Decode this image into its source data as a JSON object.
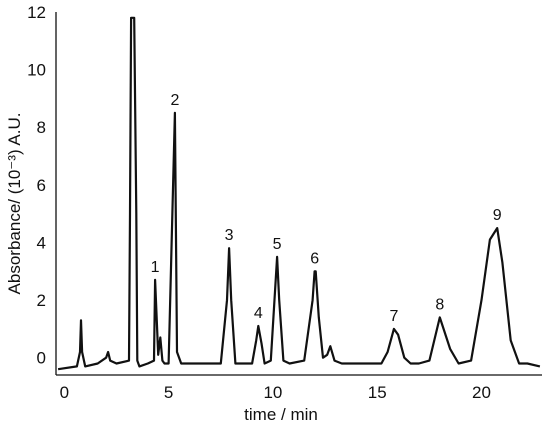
{
  "chart_data": {
    "type": "line",
    "xlabel": "time / min",
    "ylabel": "Absorbance/ (10⁻³) A.U.",
    "xlim": [
      -0.4,
      22.9
    ],
    "ylim": [
      -0.6,
      12
    ],
    "x_ticks": [
      "0",
      "5",
      "10",
      "15",
      "20"
    ],
    "x_tick_values": [
      0,
      5,
      10,
      15,
      20
    ],
    "y_ticks": [
      "0",
      "2",
      "4",
      "6",
      "8",
      "10",
      "12"
    ],
    "y_tick_values": [
      0,
      2,
      4,
      6,
      8,
      10,
      12
    ],
    "grid": false,
    "line_color": "#111111",
    "series": [
      {
        "x": [
          -0.3,
          0.6,
          0.75,
          0.8,
          0.85,
          1.0,
          1.6,
          2.0,
          2.1,
          2.2,
          2.5,
          3.1,
          3.15,
          3.2,
          3.35,
          3.45,
          3.5,
          3.6,
          4.0,
          4.3,
          4.35,
          4.5,
          4.6,
          4.7,
          4.8,
          5.0,
          5.3,
          5.4,
          5.6,
          6.0,
          7.5,
          7.8,
          7.9,
          8.0,
          8.2,
          8.5,
          9.0,
          9.2,
          9.3,
          9.45,
          9.6,
          9.9,
          10.2,
          10.3,
          10.5,
          10.8,
          11.5,
          11.9,
          12.0,
          12.05,
          12.2,
          12.4,
          12.6,
          12.75,
          12.95,
          13.3,
          14.5,
          15.2,
          15.5,
          15.8,
          16.0,
          16.3,
          16.6,
          17.0,
          17.5,
          18.0,
          18.5,
          18.9,
          19.5,
          20.0,
          20.4,
          20.75,
          21.0,
          21.4,
          21.8,
          22.2,
          22.8
        ],
        "y": [
          -0.4,
          -0.3,
          0.2,
          1.3,
          0.2,
          -0.3,
          -0.2,
          0.0,
          0.2,
          -0.1,
          -0.2,
          -0.1,
          5.0,
          11.8,
          11.8,
          5.0,
          -0.1,
          -0.3,
          -0.2,
          -0.1,
          2.7,
          0.1,
          0.7,
          -0.1,
          -0.2,
          -0.2,
          8.5,
          0.2,
          -0.2,
          -0.2,
          -0.2,
          2.0,
          3.8,
          2.0,
          -0.2,
          -0.2,
          -0.2,
          0.6,
          1.1,
          0.5,
          -0.2,
          -0.1,
          3.5,
          2.0,
          -0.1,
          -0.2,
          -0.1,
          2.0,
          3.0,
          3.0,
          1.4,
          0.0,
          0.1,
          0.4,
          -0.1,
          -0.2,
          -0.2,
          -0.2,
          0.2,
          1.0,
          0.8,
          0.0,
          -0.2,
          -0.2,
          -0.1,
          1.4,
          0.3,
          -0.2,
          -0.1,
          2.0,
          4.1,
          4.5,
          3.3,
          0.6,
          -0.2,
          -0.2,
          -0.3
        ]
      }
    ],
    "peak_labels": [
      {
        "text": "1",
        "x": 4.35,
        "y": 2.7
      },
      {
        "text": "2",
        "x": 5.3,
        "y": 8.5
      },
      {
        "text": "3",
        "x": 7.9,
        "y": 3.8
      },
      {
        "text": "4",
        "x": 9.3,
        "y": 1.1
      },
      {
        "text": "5",
        "x": 10.2,
        "y": 3.5
      },
      {
        "text": "6",
        "x": 12.0,
        "y": 3.0
      },
      {
        "text": "7",
        "x": 15.8,
        "y": 1.0
      },
      {
        "text": "8",
        "x": 18.0,
        "y": 1.4
      },
      {
        "text": "9",
        "x": 20.75,
        "y": 4.5
      }
    ]
  }
}
